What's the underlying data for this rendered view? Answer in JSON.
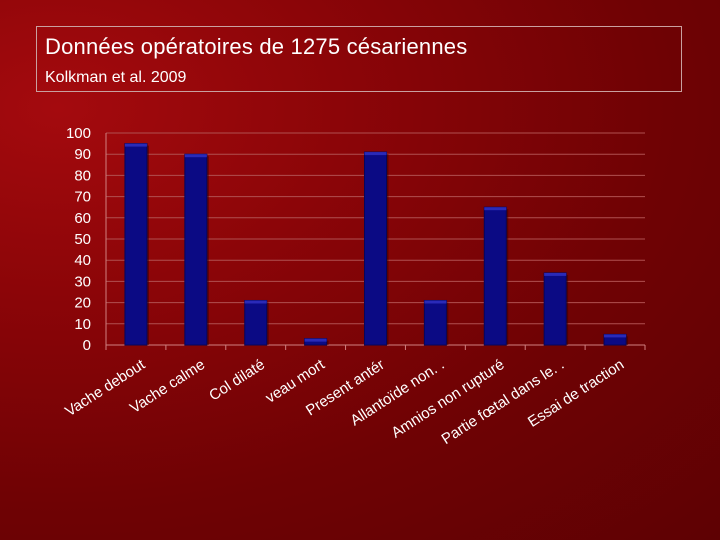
{
  "slide": {
    "title": "Données opératoires de 1275 césariennes",
    "subtitle": "Kolkman et al. 2009"
  },
  "colors": {
    "bar": "#0b0a84",
    "bar_dark": "#07065a",
    "bar_light": "#2a2ab8",
    "grid": "#b05050",
    "text": "#ffffff"
  },
  "chart_data": {
    "type": "bar",
    "categories": [
      "Vache debout",
      "Vache calme",
      "Col dilaté",
      "veau mort",
      "Present antér",
      "Allantoïde non. .",
      "Amnios non rupturé",
      "Partie fœtal dans le. .",
      "Essai de traction"
    ],
    "values": [
      95,
      90,
      21,
      3,
      91,
      21,
      65,
      34,
      5
    ],
    "yticks": [
      0,
      10,
      20,
      30,
      40,
      50,
      60,
      70,
      80,
      90,
      100
    ],
    "ylim": [
      0,
      100
    ],
    "grid": true,
    "legend": "none"
  }
}
